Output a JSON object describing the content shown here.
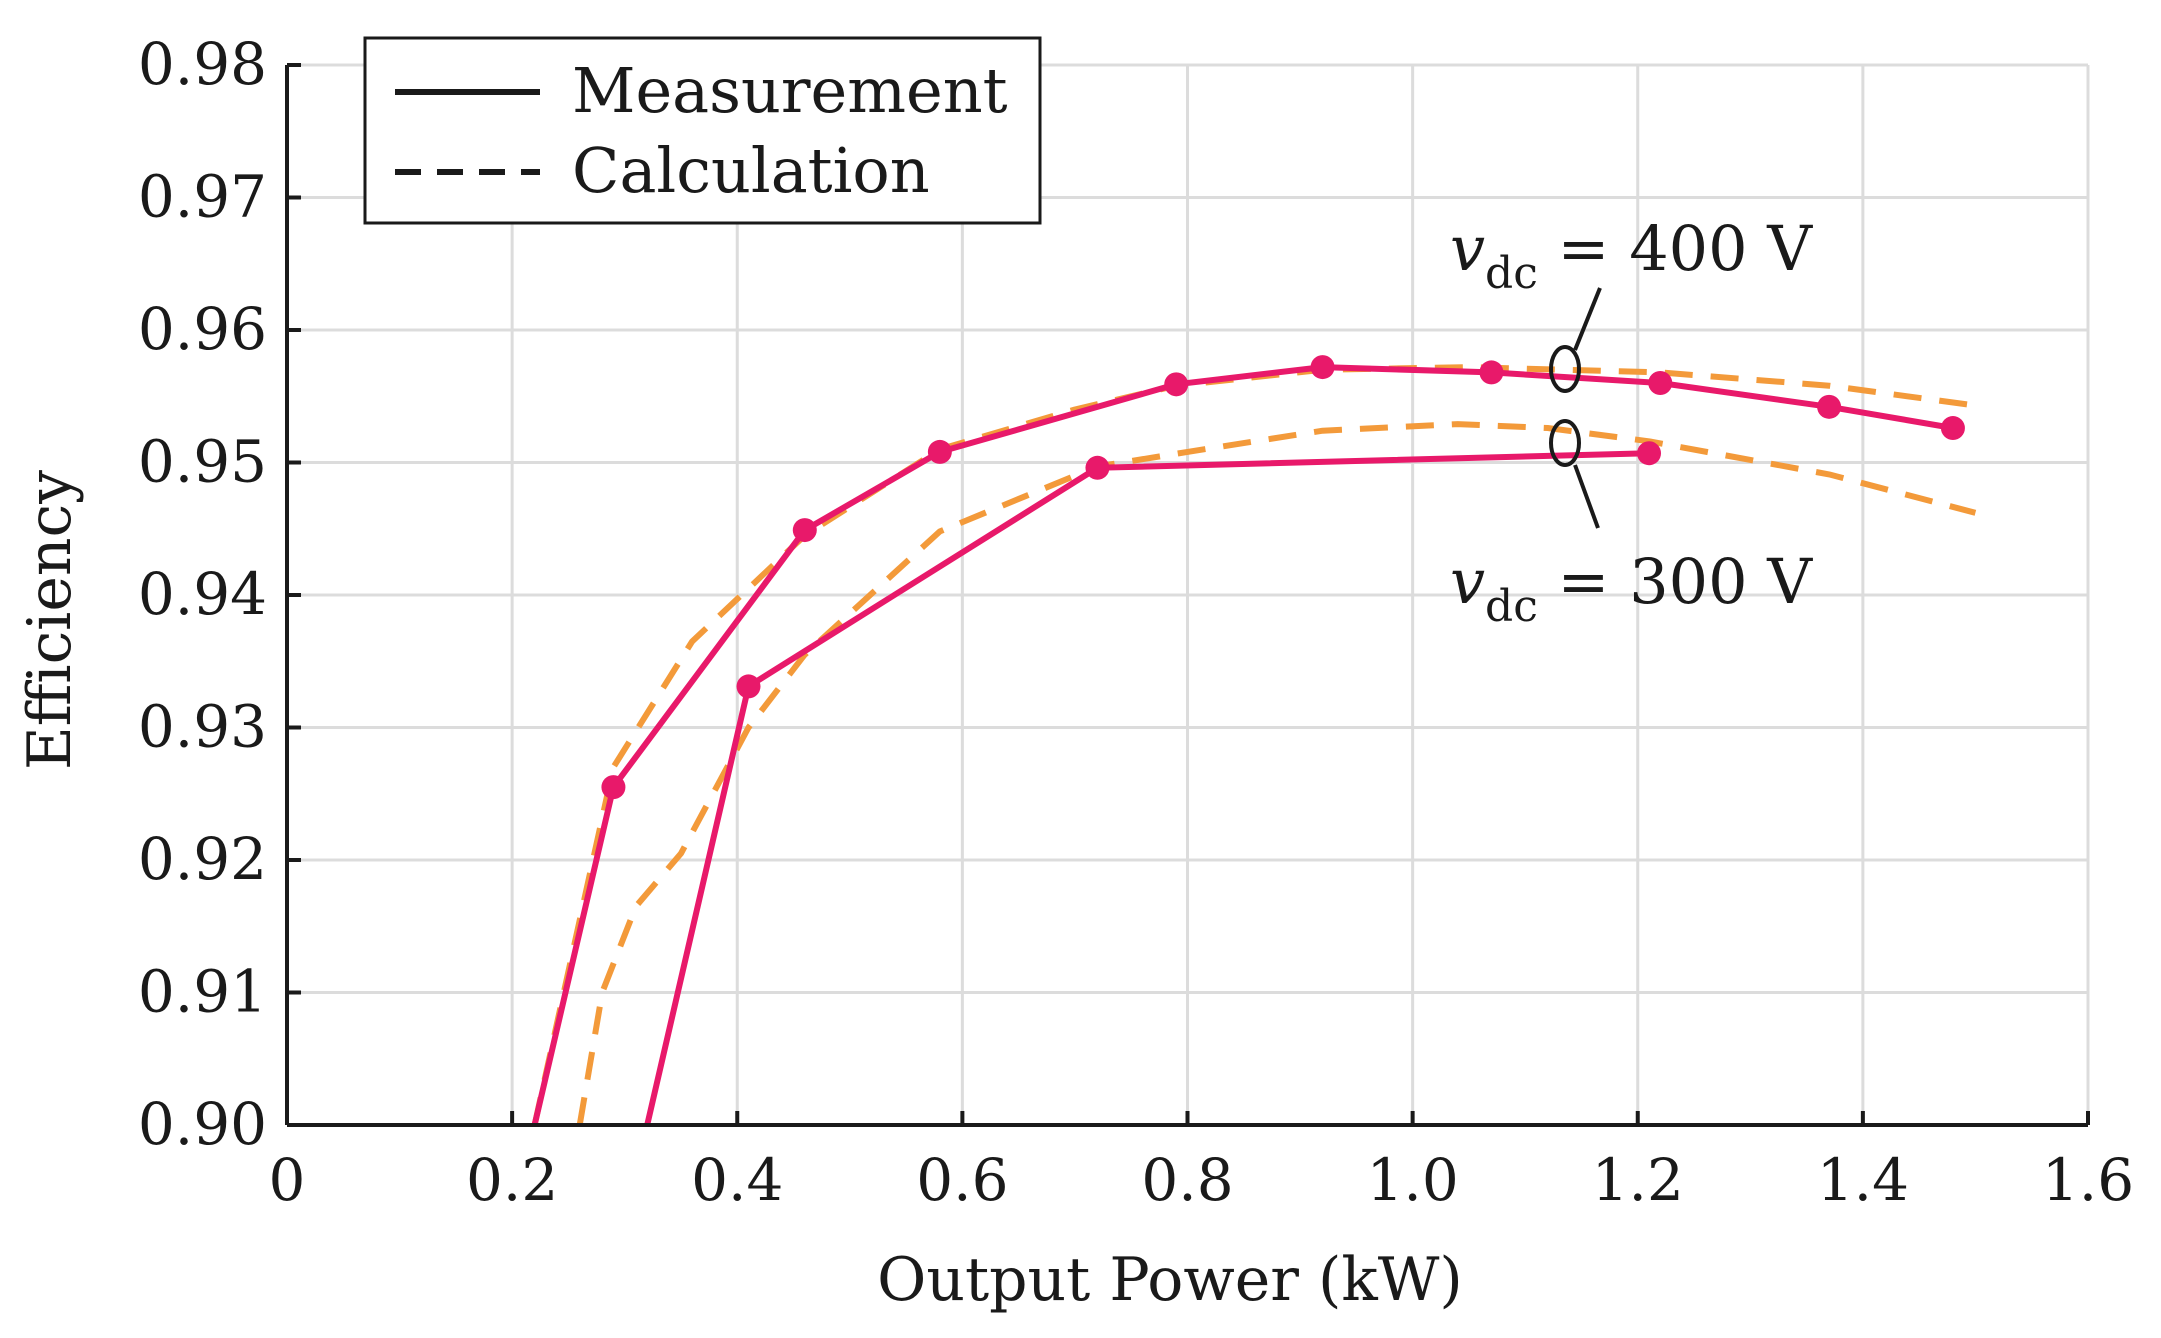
{
  "chart_data": {
    "type": "line",
    "xlabel": "Output Power (kW)",
    "ylabel": "Efficiency",
    "xlim": [
      0,
      1.6
    ],
    "ylim": [
      0.9,
      0.98
    ],
    "xticks": [
      0,
      0.2,
      0.4,
      0.6,
      0.8,
      1.0,
      1.2,
      1.4,
      1.6
    ],
    "xtick_labels": [
      "0",
      "0.2",
      "0.4",
      "0.6",
      "0.8",
      "1.0",
      "1.2",
      "1.4",
      "1.6"
    ],
    "yticks": [
      0.9,
      0.91,
      0.92,
      0.93,
      0.94,
      0.95,
      0.96,
      0.97,
      0.98
    ],
    "ytick_labels": [
      "0.90",
      "0.91",
      "0.92",
      "0.93",
      "0.94",
      "0.95",
      "0.96",
      "0.97",
      "0.98"
    ],
    "grid": true,
    "legend": {
      "placement": "top-left",
      "entries": [
        {
          "label": "Measurement",
          "style": "solid"
        },
        {
          "label": "Calculation",
          "style": "dashed"
        }
      ]
    },
    "colors": {
      "measurement": "#e8196a",
      "calculation": "#f39a3a",
      "grid": "#dcdcdc",
      "axis": "#1a1a1a"
    },
    "series": [
      {
        "name": "Measurement vdc=400 V",
        "style": "solid",
        "x": [
          0.22,
          0.29,
          0.46,
          0.58,
          0.79,
          0.92,
          1.07,
          1.22,
          1.37,
          1.48
        ],
        "y": [
          0.9,
          0.9255,
          0.9449,
          0.9508,
          0.9559,
          0.9572,
          0.9568,
          0.956,
          0.9542,
          0.9526
        ],
        "markers": [
          false,
          true,
          true,
          true,
          true,
          true,
          true,
          true,
          true,
          true
        ]
      },
      {
        "name": "Measurement vdc=300 V",
        "style": "solid",
        "x": [
          0.32,
          0.41,
          0.72,
          1.21
        ],
        "y": [
          0.9,
          0.9331,
          0.9496,
          0.9507
        ],
        "markers": [
          false,
          true,
          true,
          true
        ]
      },
      {
        "name": "Calculation vdc=400 V",
        "style": "dashed",
        "x": [
          0.22,
          0.29,
          0.36,
          0.46,
          0.58,
          0.7,
          0.79,
          0.92,
          1.05,
          1.22,
          1.37,
          1.5
        ],
        "y": [
          0.9,
          0.927,
          0.9365,
          0.9445,
          0.951,
          0.954,
          0.9558,
          0.957,
          0.9572,
          0.9568,
          0.9558,
          0.9543
        ]
      },
      {
        "name": "Calculation vdc=300 V",
        "style": "dashed",
        "x": [
          0.26,
          0.28,
          0.31,
          0.35,
          0.41,
          0.46,
          0.58,
          0.72,
          0.8,
          0.92,
          1.04,
          1.12,
          1.21,
          1.37,
          1.5
        ],
        "y": [
          0.9,
          0.91,
          0.9165,
          0.9205,
          0.93,
          0.9355,
          0.9448,
          0.9497,
          0.9508,
          0.9524,
          0.9529,
          0.9526,
          0.9516,
          0.9491,
          0.9462
        ]
      }
    ],
    "annotations": [
      {
        "var": "v",
        "sub": "dc",
        "text": " = 400 V",
        "target_x": 1.135,
        "target_y": 0.9573
      },
      {
        "var": "v",
        "sub": "dc",
        "text": " = 300 V",
        "target_x": 1.135,
        "target_y": 0.9516
      }
    ]
  }
}
